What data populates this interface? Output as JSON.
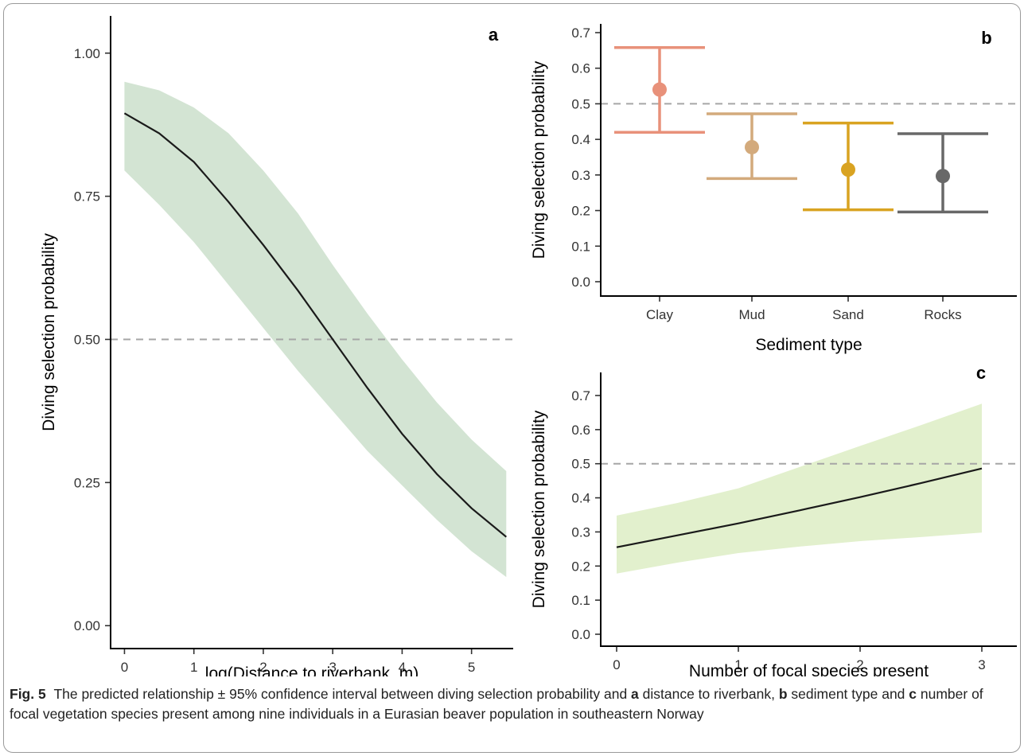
{
  "caption": {
    "label": "Fig. 5",
    "part1": "The predicted relationship ± 95% confidence interval between diving selection probability and ",
    "a": "a",
    "part2": " distance to riverbank, ",
    "b": "b",
    "part3": " sediment type and ",
    "c": "c",
    "part4": " number of focal vegetation species present among nine individuals in a Eurasian beaver population in southeastern Norway"
  },
  "colors": {
    "band_a": "#d3e4d3",
    "band_c": "#e2f0cd",
    "line": "#1a1a1a",
    "reference": "#a6a6a6",
    "clay": "#e8917a",
    "mud": "#d3aa7c",
    "sand": "#d9a321",
    "rocks": "#686868"
  },
  "chart_data": [
    {
      "panel": "a",
      "type": "line",
      "xlabel": "log(Distance to riverbank, m)",
      "ylabel": "Diving selection probability",
      "xlim": [
        -0.2,
        5.6
      ],
      "ylim": [
        -0.04,
        1.065
      ],
      "x_ticks": [
        0,
        1,
        2,
        3,
        4,
        5
      ],
      "y_ticks": [
        0.0,
        0.25,
        0.5,
        0.75,
        1.0
      ],
      "y_tick_labels": [
        "0.00",
        "0.25",
        "0.50",
        "0.75",
        "1.00"
      ],
      "reference_line": 0.5,
      "series": [
        {
          "x": [
            0,
            0.5,
            1,
            1.5,
            2,
            2.5,
            3,
            3.5,
            4,
            4.5,
            5,
            5.5
          ],
          "y": [
            0.895,
            0.86,
            0.81,
            0.74,
            0.665,
            0.585,
            0.5,
            0.415,
            0.335,
            0.265,
            0.205,
            0.155
          ],
          "lower": [
            0.795,
            0.735,
            0.67,
            0.595,
            0.52,
            0.445,
            0.375,
            0.305,
            0.245,
            0.185,
            0.13,
            0.085
          ],
          "upper": [
            0.95,
            0.935,
            0.905,
            0.86,
            0.795,
            0.72,
            0.63,
            0.545,
            0.465,
            0.39,
            0.325,
            0.27
          ]
        }
      ]
    },
    {
      "panel": "b",
      "type": "scatter",
      "xlabel": "Sediment type",
      "ylabel": "Diving selection probability",
      "categories": [
        "Clay",
        "Mud",
        "Sand",
        "Rocks"
      ],
      "ylim": [
        -0.02,
        0.73
      ],
      "y_ticks": [
        0.0,
        0.1,
        0.2,
        0.3,
        0.4,
        0.5,
        0.6,
        0.7
      ],
      "y_tick_labels": [
        "0.0",
        "0.1",
        "0.2",
        "0.3",
        "0.4",
        "0.5",
        "0.6",
        "0.7"
      ],
      "reference_line": 0.5,
      "values": [
        0.54,
        0.378,
        0.315,
        0.297
      ],
      "lower": [
        0.42,
        0.29,
        0.202,
        0.196
      ],
      "upper": [
        0.658,
        0.472,
        0.446,
        0.416
      ]
    },
    {
      "panel": "c",
      "type": "line",
      "xlabel": "Number of focal species present",
      "ylabel": "Diving selection probability",
      "xlim": [
        -0.15,
        3.15
      ],
      "ylim": [
        -0.02,
        0.78
      ],
      "x_ticks": [
        0,
        1,
        2,
        3
      ],
      "y_ticks": [
        0.0,
        0.1,
        0.2,
        0.3,
        0.4,
        0.5,
        0.6,
        0.7
      ],
      "y_tick_labels": [
        "0.0",
        "0.1",
        "0.2",
        "0.3",
        "0.4",
        "0.5",
        "0.6",
        "0.7"
      ],
      "reference_line": 0.5,
      "series": [
        {
          "x": [
            0,
            0.5,
            1,
            1.5,
            2,
            2.5,
            3
          ],
          "y": [
            0.255,
            0.29,
            0.325,
            0.363,
            0.402,
            0.443,
            0.486
          ],
          "lower": [
            0.178,
            0.21,
            0.238,
            0.257,
            0.273,
            0.285,
            0.298
          ],
          "upper": [
            0.348,
            0.385,
            0.428,
            0.49,
            0.552,
            0.613,
            0.676
          ]
        }
      ]
    }
  ]
}
